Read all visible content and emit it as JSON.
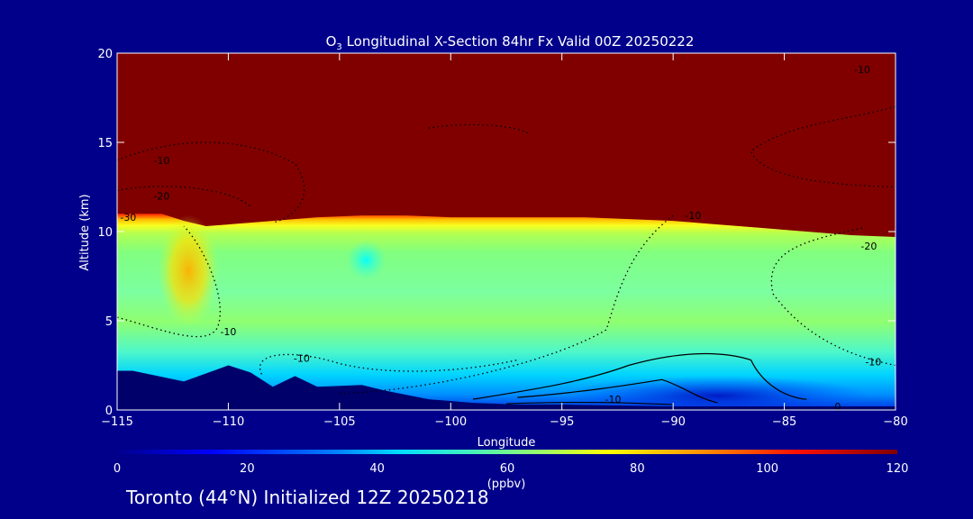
{
  "chart_data": {
    "type": "heatmap",
    "title": "O$_3$ Longitudinal X-Section 84hr  Fx Valid 00Z 20250222",
    "title_parts": {
      "pre": "O",
      "sub": "3",
      "post": " Longitudinal X-Section 84hr  Fx Valid 00Z 20250222"
    },
    "xlabel": "Longitude",
    "ylabel": "Altitude (km)",
    "xlim": [
      -115,
      -80
    ],
    "ylim": [
      0,
      20
    ],
    "xticks": [
      "−115",
      "−110",
      "−105",
      "−100",
      "−95",
      "−90",
      "−85",
      "−80"
    ],
    "yticks": [
      "0",
      "5",
      "10",
      "15",
      "20"
    ],
    "colorbar": {
      "label": "(ppbv)",
      "range": [
        0,
        120
      ],
      "ticks": [
        "0",
        "20",
        "40",
        "60",
        "80",
        "100",
        "120"
      ]
    },
    "colors": {
      "background": "#00008b",
      "stratosphere": "#800000",
      "terrain": "#00006a"
    },
    "tropopause_km": [
      [
        -115,
        11.0
      ],
      [
        -113,
        11.0
      ],
      [
        -112,
        10.6
      ],
      [
        -111,
        10.3
      ],
      [
        -110,
        10.4
      ],
      [
        -108,
        10.6
      ],
      [
        -106,
        10.8
      ],
      [
        -104,
        10.9
      ],
      [
        -102,
        10.9
      ],
      [
        -100,
        10.8
      ],
      [
        -98,
        10.8
      ],
      [
        -96,
        10.8
      ],
      [
        -94,
        10.8
      ],
      [
        -92,
        10.7
      ],
      [
        -90,
        10.6
      ],
      [
        -88,
        10.4
      ],
      [
        -86,
        10.2
      ],
      [
        -84,
        10.0
      ],
      [
        -82,
        9.8
      ],
      [
        -80,
        9.7
      ]
    ],
    "terrain_km": [
      [
        -115,
        2.2
      ],
      [
        -114.3,
        2.2
      ],
      [
        -112,
        1.6
      ],
      [
        -110,
        2.5
      ],
      [
        -109,
        2.1
      ],
      [
        -108,
        1.3
      ],
      [
        -107,
        1.9
      ],
      [
        -106,
        1.3
      ],
      [
        -104,
        1.4
      ],
      [
        -103,
        1.1
      ],
      [
        -101,
        0.6
      ],
      [
        -99,
        0.4
      ],
      [
        -97,
        0.3
      ],
      [
        -95,
        0.3
      ],
      [
        -90,
        0.2
      ],
      [
        -85,
        0.2
      ],
      [
        -80,
        0.2
      ]
    ],
    "contour_labels": [
      {
        "text": "-10",
        "lon": -81.5,
        "alt": 19.1
      },
      {
        "text": "-10",
        "lon": -113.0,
        "alt": 14.0
      },
      {
        "text": "-20",
        "lon": -113.0,
        "alt": 12.0
      },
      {
        "text": "-30",
        "lon": -114.5,
        "alt": 10.8
      },
      {
        "text": "-10",
        "lon": -89.1,
        "alt": 10.9
      },
      {
        "text": "-20",
        "lon": -81.2,
        "alt": 9.2
      },
      {
        "text": "-10",
        "lon": -110.0,
        "alt": 4.4
      },
      {
        "text": "-10",
        "lon": -106.7,
        "alt": 2.9
      },
      {
        "text": "-10",
        "lon": -81.0,
        "alt": 2.7
      },
      {
        "text": "-10",
        "lon": -92.7,
        "alt": 0.6
      },
      {
        "text": "0",
        "lon": -82.6,
        "alt": 0.2
      }
    ]
  },
  "footer": "Toronto (44°N) Initialized 12Z 20250218"
}
